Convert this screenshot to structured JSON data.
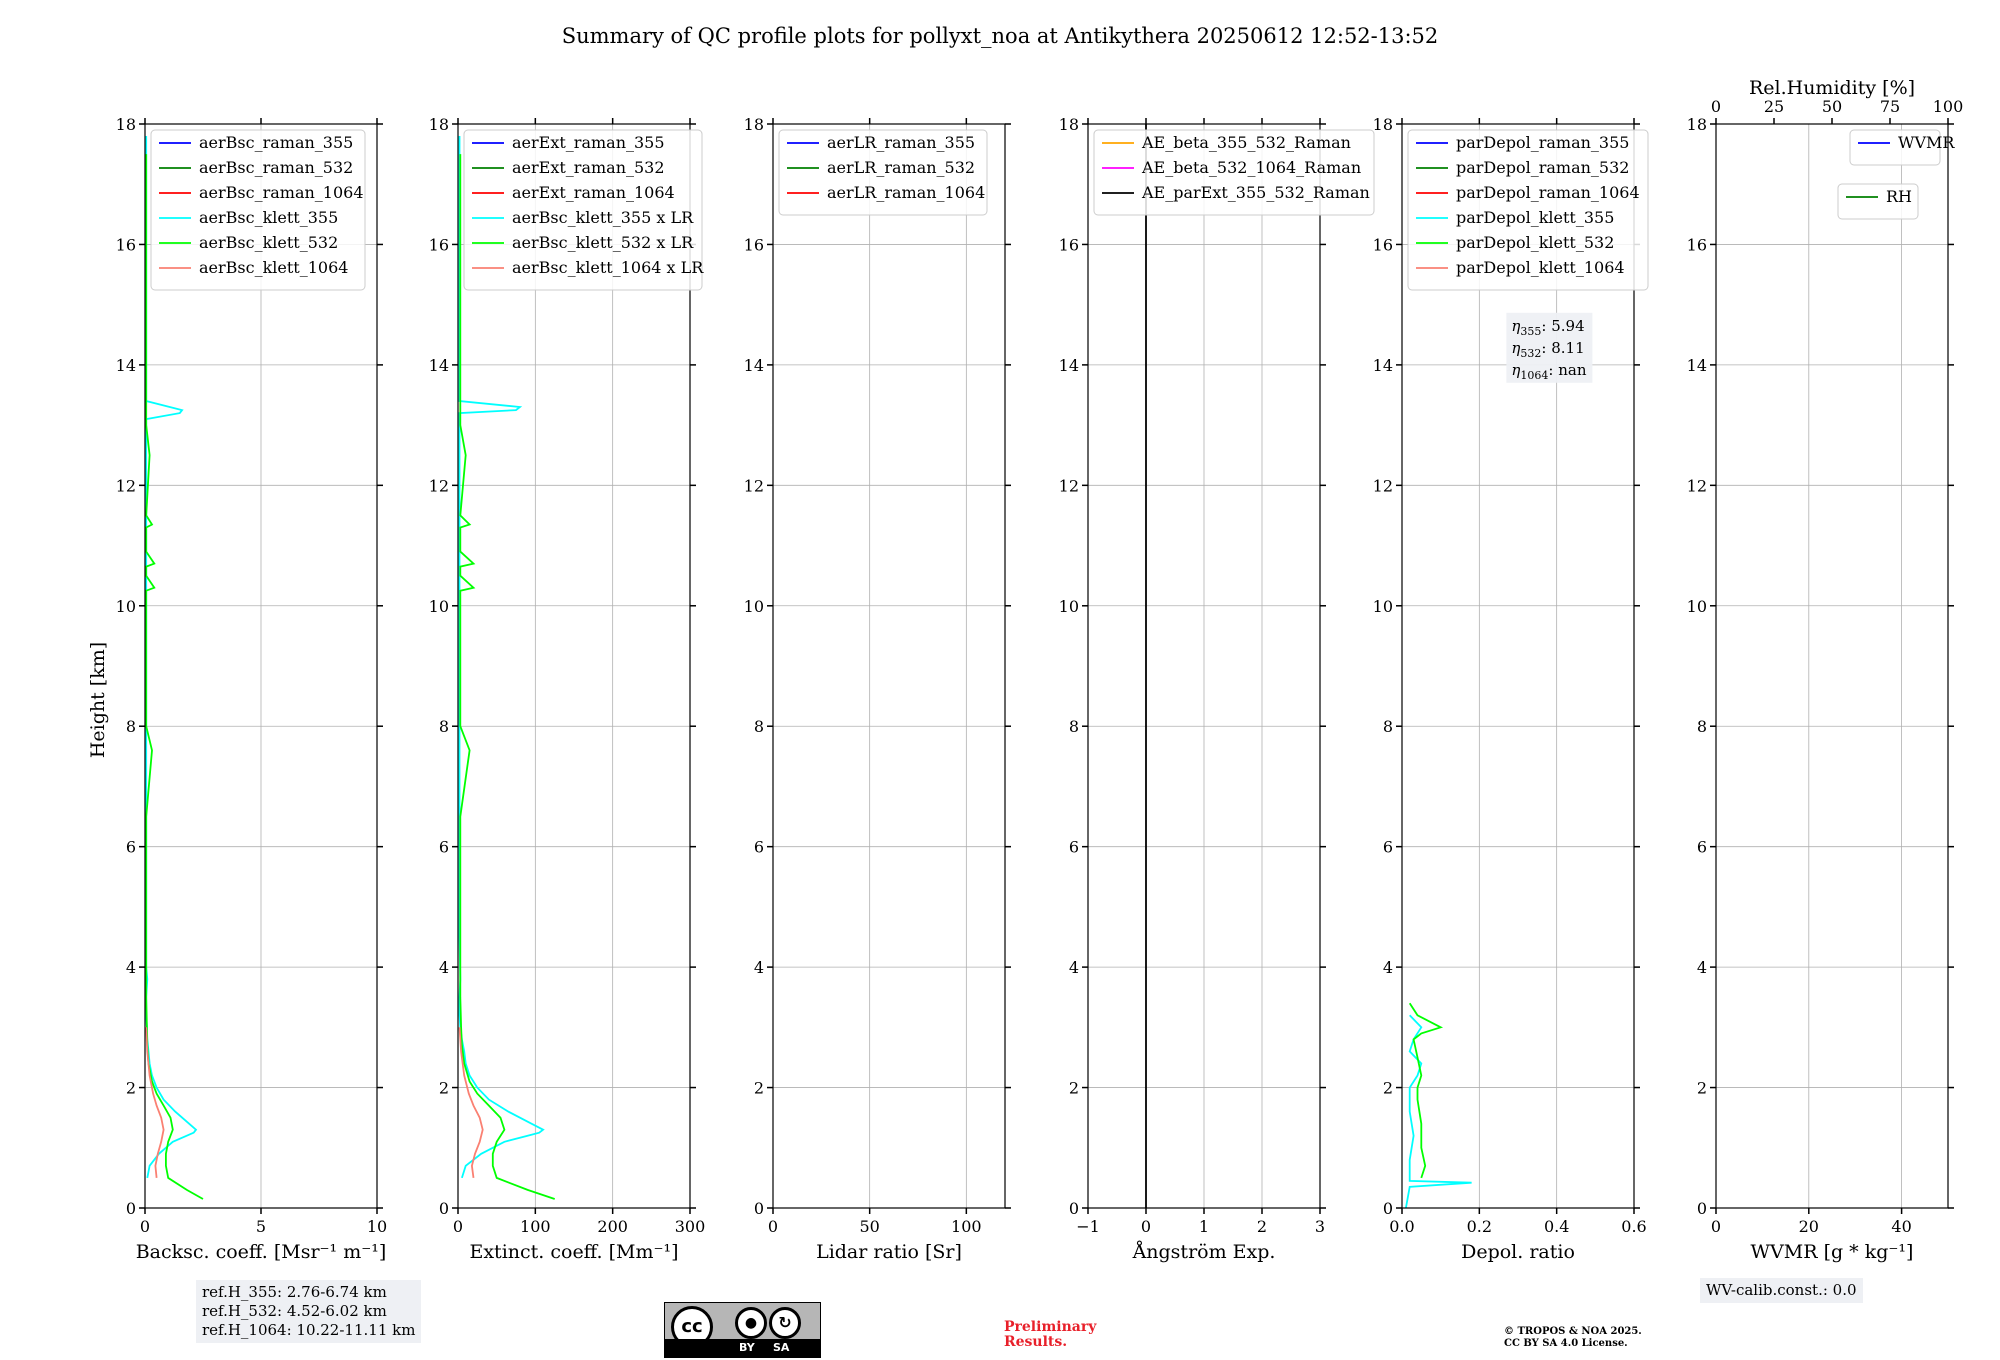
{
  "figure_title": "Summary of QC profile plots for pollyxt_noa at Antikythera 20250612 12:52-13:52",
  "ylabel": "Height [km]",
  "chart_data": [
    {
      "type": "line",
      "xlabel": "Backsc. coeff. [Msr⁻¹ m⁻¹]",
      "xlim": [
        0,
        10
      ],
      "ylim": [
        0,
        18
      ],
      "xticks": [
        0,
        5,
        10
      ],
      "xticklabels": [
        "0",
        "5",
        "10"
      ],
      "yticks": [
        0,
        2,
        4,
        6,
        8,
        10,
        12,
        14,
        16,
        18
      ],
      "legend": [
        {
          "label": "aerBsc_raman_355",
          "color": "#0000ff"
        },
        {
          "label": "aerBsc_raman_532",
          "color": "#008000"
        },
        {
          "label": "aerBsc_raman_1064",
          "color": "#ff0000"
        },
        {
          "label": "aerBsc_klett_355",
          "color": "#00ffff"
        },
        {
          "label": "aerBsc_klett_532",
          "color": "#00ff00"
        },
        {
          "label": "aerBsc_klett_1064",
          "color": "#fa8072"
        }
      ],
      "series": [
        {
          "name": "aerBsc_klett_355",
          "color": "#00ffff",
          "x": [
            0.1,
            0.2,
            0.6,
            1.2,
            1.8,
            2.1,
            2.2,
            1.9,
            1.3,
            0.8,
            0.5,
            0.3,
            0.2,
            0.15,
            0.1,
            0.08,
            0.05,
            0.05,
            0.1,
            0.05,
            0.05,
            0.05,
            0.05,
            0.05,
            0.05,
            0.05,
            0.05,
            0.05,
            0.05,
            0.05,
            0.05,
            0.05,
            0.05,
            0.05,
            0.05,
            1.5,
            1.6,
            0.05,
            0.05,
            0.05,
            0.05,
            0.05
          ],
          "y": [
            0.5,
            0.7,
            0.9,
            1.1,
            1.2,
            1.25,
            1.3,
            1.4,
            1.6,
            1.8,
            2.0,
            2.2,
            2.4,
            2.6,
            2.8,
            3.0,
            3.2,
            3.5,
            3.8,
            4.0,
            4.5,
            5.0,
            5.5,
            6.0,
            6.5,
            7.0,
            7.5,
            8.0,
            8.5,
            9.0,
            9.5,
            10.0,
            11.0,
            12.0,
            13.1,
            13.2,
            13.25,
            13.4,
            14.5,
            15.5,
            16.5,
            17.8
          ]
        },
        {
          "name": "aerBsc_klett_532",
          "color": "#00ff00",
          "x": [
            2.5,
            1.8,
            1.0,
            0.9,
            0.9,
            1.0,
            1.2,
            1.1,
            0.8,
            0.5,
            0.3,
            0.15,
            0.1,
            0.08,
            0.05,
            0.05,
            0.05,
            0.05,
            0.3,
            0.05,
            0.05,
            0.05,
            0.05,
            0.05,
            0.4,
            0.05,
            0.05,
            0.4,
            0.05,
            0.05,
            0.3,
            0.05,
            0.2,
            0.05,
            0.05,
            0.05,
            0.05
          ],
          "y": [
            0.15,
            0.3,
            0.5,
            0.7,
            0.9,
            1.1,
            1.3,
            1.5,
            1.7,
            1.9,
            2.1,
            2.4,
            2.7,
            3.0,
            3.5,
            4.5,
            5.5,
            6.5,
            7.6,
            8.0,
            9.0,
            10.0,
            10.2,
            10.25,
            10.3,
            10.5,
            10.65,
            10.7,
            10.9,
            11.3,
            11.35,
            11.5,
            12.5,
            13.0,
            14.2,
            15.0,
            17.5
          ]
        },
        {
          "name": "aerBsc_klett_1064",
          "color": "#fa8072",
          "x": [
            0.5,
            0.45,
            0.55,
            0.7,
            0.8,
            0.7,
            0.5,
            0.35,
            0.2,
            0.1,
            0.05
          ],
          "y": [
            0.5,
            0.7,
            0.9,
            1.1,
            1.3,
            1.5,
            1.7,
            1.9,
            2.2,
            2.6,
            3.0
          ]
        }
      ]
    },
    {
      "type": "line",
      "xlabel": "Extinct. coeff. [Mm⁻¹]",
      "xlim": [
        0,
        300
      ],
      "ylim": [
        0,
        18
      ],
      "xticks": [
        0,
        100,
        200,
        300
      ],
      "xticklabels": [
        "0",
        "100",
        "200",
        "300"
      ],
      "yticks": [
        0,
        2,
        4,
        6,
        8,
        10,
        12,
        14,
        16,
        18
      ],
      "legend": [
        {
          "label": "aerExt_raman_355",
          "color": "#0000ff"
        },
        {
          "label": "aerExt_raman_532",
          "color": "#008000"
        },
        {
          "label": "aerExt_raman_1064",
          "color": "#ff0000"
        },
        {
          "label": "aerBsc_klett_355 x LR",
          "color": "#00ffff"
        },
        {
          "label": "aerBsc_klett_532 x LR",
          "color": "#00ff00"
        },
        {
          "label": "aerBsc_klett_1064 x LR",
          "color": "#fa8072"
        }
      ],
      "series": [
        {
          "name": "aerBsc_klett_355 x LR",
          "color": "#00ffff",
          "x": [
            5,
            10,
            30,
            60,
            90,
            105,
            110,
            95,
            65,
            40,
            25,
            15,
            10,
            8,
            5,
            3,
            2,
            2,
            3,
            2,
            2,
            2,
            2,
            2,
            2,
            2,
            2,
            2,
            2,
            2,
            2,
            75,
            80,
            2,
            2,
            2,
            2,
            2
          ],
          "y": [
            0.5,
            0.7,
            0.9,
            1.1,
            1.2,
            1.25,
            1.3,
            1.4,
            1.6,
            1.8,
            2.0,
            2.2,
            2.4,
            2.6,
            2.8,
            3.0,
            3.2,
            3.5,
            3.8,
            4.5,
            5.5,
            6.5,
            7.5,
            8.5,
            9.5,
            10.5,
            11.5,
            12.5,
            13.0,
            13.1,
            13.2,
            13.25,
            13.3,
            13.4,
            14.5,
            15.5,
            16.5,
            17.8
          ]
        },
        {
          "name": "aerBsc_klett_532 x LR",
          "color": "#00ff00",
          "x": [
            125,
            90,
            50,
            45,
            45,
            50,
            60,
            55,
            40,
            25,
            15,
            8,
            5,
            4,
            3,
            3,
            3,
            3,
            15,
            3,
            3,
            3,
            3,
            3,
            20,
            3,
            3,
            20,
            3,
            3,
            15,
            3,
            10,
            3,
            3,
            3,
            3
          ],
          "y": [
            0.15,
            0.3,
            0.5,
            0.7,
            0.9,
            1.1,
            1.3,
            1.5,
            1.7,
            1.9,
            2.1,
            2.4,
            2.7,
            3.0,
            3.5,
            4.5,
            5.5,
            6.5,
            7.6,
            8.0,
            9.0,
            10.0,
            10.2,
            10.25,
            10.3,
            10.5,
            10.65,
            10.7,
            10.9,
            11.3,
            11.35,
            11.5,
            12.5,
            13.0,
            14.2,
            15.0,
            17.5
          ]
        },
        {
          "name": "aerBsc_klett_1064 x LR",
          "color": "#fa8072",
          "x": [
            20,
            18,
            22,
            28,
            32,
            28,
            20,
            14,
            8,
            4,
            2
          ],
          "y": [
            0.5,
            0.7,
            0.9,
            1.1,
            1.3,
            1.5,
            1.7,
            1.9,
            2.2,
            2.6,
            3.0
          ]
        }
      ]
    },
    {
      "type": "line",
      "xlabel": "Lidar ratio [Sr]",
      "xlim": [
        0,
        120
      ],
      "ylim": [
        0,
        18
      ],
      "xticks": [
        0,
        50,
        100
      ],
      "xticklabels": [
        "0",
        "50",
        "100"
      ],
      "yticks": [
        0,
        2,
        4,
        6,
        8,
        10,
        12,
        14,
        16,
        18
      ],
      "legend": [
        {
          "label": "aerLR_raman_355",
          "color": "#0000ff"
        },
        {
          "label": "aerLR_raman_532",
          "color": "#008000"
        },
        {
          "label": "aerLR_raman_1064",
          "color": "#ff0000"
        }
      ],
      "series": []
    },
    {
      "type": "line",
      "xlabel": "Ångström Exp.",
      "xlim": [
        -1,
        3
      ],
      "ylim": [
        0,
        18
      ],
      "xticks": [
        -1,
        0,
        1,
        2,
        3
      ],
      "xticklabels": [
        "−1",
        "0",
        "1",
        "2",
        "3"
      ],
      "yticks": [
        0,
        2,
        4,
        6,
        8,
        10,
        12,
        14,
        16,
        18
      ],
      "legend": [
        {
          "label": "AE_beta_355_532_Raman",
          "color": "#ffa500"
        },
        {
          "label": "AE_beta_532_1064_Raman",
          "color": "#ff00ff"
        },
        {
          "label": "AE_parExt_355_532_Raman",
          "color": "#000000"
        }
      ],
      "series": [
        {
          "name": "zero line",
          "color": "#000000",
          "x": [
            0,
            0
          ],
          "y": [
            0,
            18
          ]
        }
      ]
    },
    {
      "type": "line",
      "xlabel": "Depol. ratio",
      "xlim": [
        0,
        0.6
      ],
      "ylim": [
        0,
        18
      ],
      "xticks": [
        0,
        0.2,
        0.4,
        0.6
      ],
      "xticklabels": [
        "0.0",
        "0.2",
        "0.4",
        "0.6"
      ],
      "yticks": [
        0,
        2,
        4,
        6,
        8,
        10,
        12,
        14,
        16,
        18
      ],
      "legend": [
        {
          "label": "parDepol_raman_355",
          "color": "#0000ff"
        },
        {
          "label": "parDepol_raman_532",
          "color": "#008000"
        },
        {
          "label": "parDepol_raman_1064",
          "color": "#ff0000"
        },
        {
          "label": "parDepol_klett_355",
          "color": "#00ffff"
        },
        {
          "label": "parDepol_klett_532",
          "color": "#00ff00"
        },
        {
          "label": "parDepol_klett_1064",
          "color": "#fa8072"
        }
      ],
      "series": [
        {
          "name": "parDepol_klett_355",
          "color": "#00ffff",
          "x": [
            0.01,
            0.02,
            0.18,
            0.02,
            0.02,
            0.03,
            0.02,
            0.02,
            0.04,
            0.05,
            0.02,
            0.03,
            0.05,
            0.02
          ],
          "y": [
            0.0,
            0.35,
            0.42,
            0.45,
            0.8,
            1.2,
            1.6,
            2.0,
            2.2,
            2.4,
            2.6,
            2.8,
            3.0,
            3.2
          ]
        },
        {
          "name": "parDepol_klett_532",
          "color": "#00ff00",
          "x": [
            0.05,
            0.06,
            0.05,
            0.05,
            0.04,
            0.04,
            0.05,
            0.04,
            0.03,
            0.05,
            0.1,
            0.04,
            0.02
          ],
          "y": [
            0.5,
            0.7,
            1.0,
            1.4,
            1.8,
            2.0,
            2.2,
            2.5,
            2.8,
            2.9,
            3.0,
            3.2,
            3.4
          ]
        }
      ],
      "annotation": [
        {
          "sub": "355",
          "value": "5.94"
        },
        {
          "sub": "532",
          "value": "8.11"
        },
        {
          "sub": "1064",
          "value": "nan"
        }
      ]
    },
    {
      "type": "line",
      "xlabel": "WVMR [g * kg⁻¹]",
      "x2label": "Rel.Humidity [%]",
      "xlim": [
        0,
        50
      ],
      "x2lim": [
        0,
        100
      ],
      "ylim": [
        0,
        18
      ],
      "xticks": [
        0,
        20,
        40
      ],
      "xticklabels": [
        "0",
        "20",
        "40"
      ],
      "x2ticks": [
        0,
        25,
        50,
        75,
        100
      ],
      "x2ticklabels": [
        "0",
        "25",
        "50",
        "75",
        "100"
      ],
      "yticks": [
        0,
        2,
        4,
        6,
        8,
        10,
        12,
        14,
        16,
        18
      ],
      "legend": [
        {
          "label": "WVMR",
          "color": "#0000ff"
        }
      ],
      "legend2": [
        {
          "label": "RH",
          "color": "#008000"
        }
      ],
      "series": []
    }
  ],
  "ytick_labels": [
    "0",
    "2",
    "4",
    "6",
    "8",
    "10",
    "12",
    "14",
    "16",
    "18"
  ],
  "ref_heights": [
    "ref.H_355: 2.76-6.74 km",
    "ref.H_532: 4.52-6.02 km",
    "ref.H_1064: 10.22-11.11 km"
  ],
  "wv_calib": "WV-calib.const.: 0.0",
  "cc_logo": {
    "left": "BY",
    "right": "SA",
    "mark": "cc"
  },
  "preliminary": [
    "Preliminary",
    "Results."
  ],
  "copyright": [
    "© TROPOS & NOA 2025.",
    "CC BY SA 4.0 License."
  ]
}
